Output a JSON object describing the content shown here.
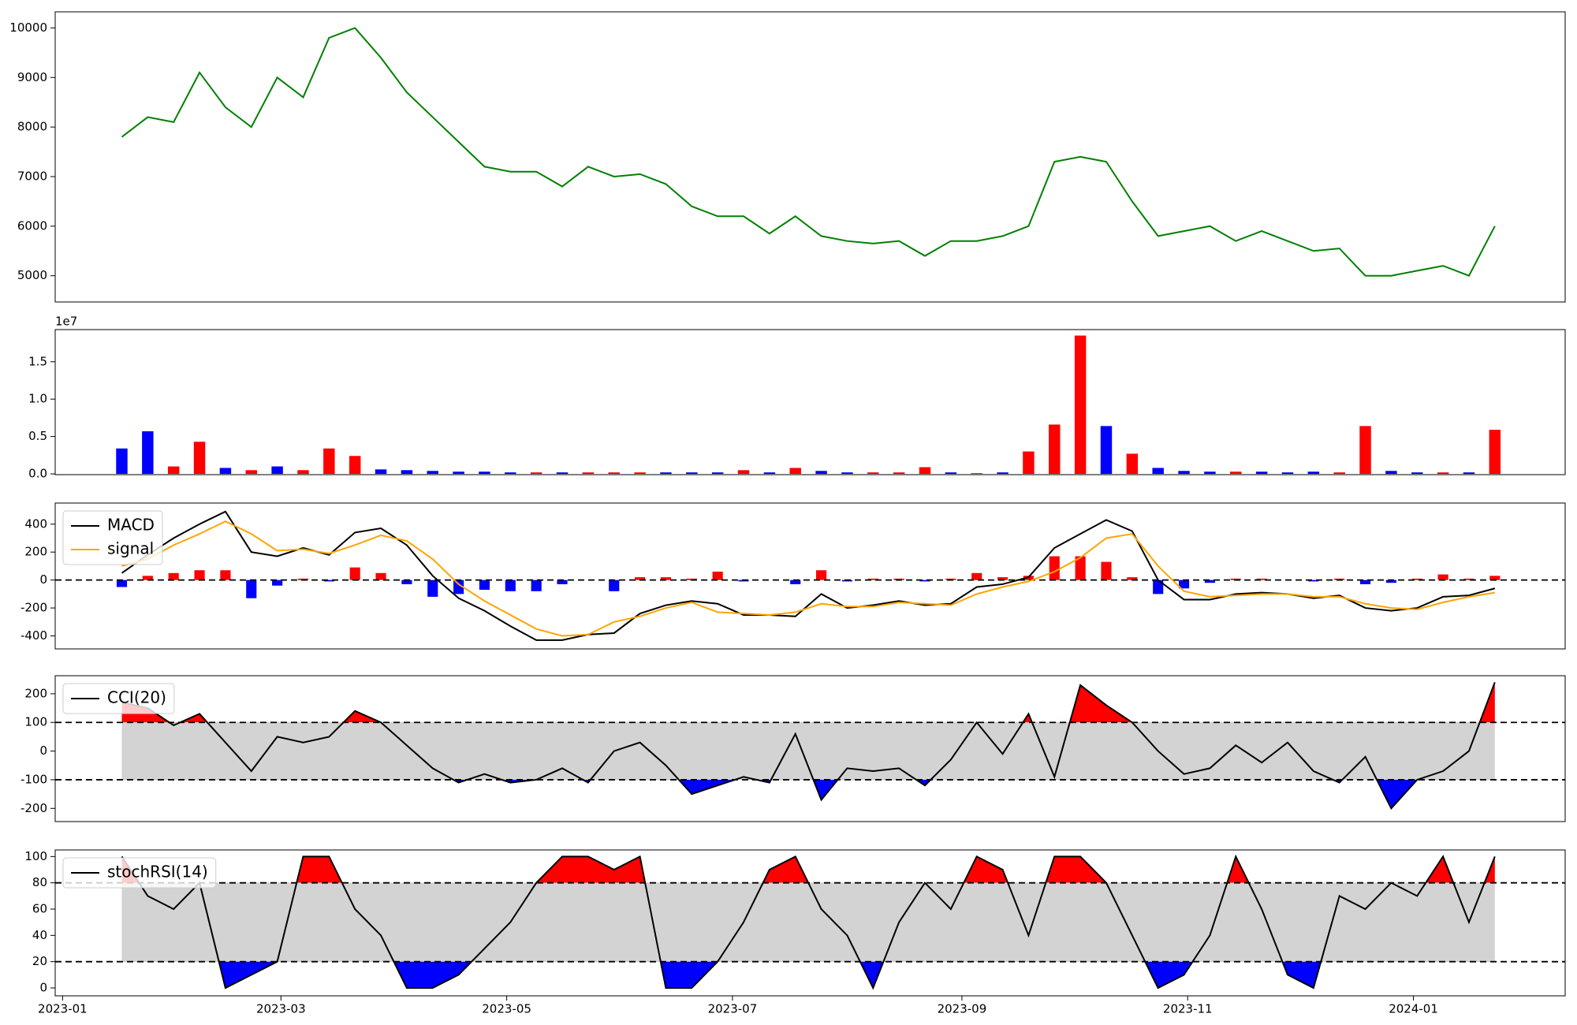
{
  "chart_data": {
    "type": "indicator-panels",
    "x": [
      "2023-01-17",
      "2023-01-24",
      "2023-01-31",
      "2023-02-07",
      "2023-02-14",
      "2023-02-21",
      "2023-02-28",
      "2023-03-07",
      "2023-03-14",
      "2023-03-21",
      "2023-03-28",
      "2023-04-04",
      "2023-04-11",
      "2023-04-18",
      "2023-04-25",
      "2023-05-02",
      "2023-05-09",
      "2023-05-16",
      "2023-05-23",
      "2023-05-30",
      "2023-06-06",
      "2023-06-13",
      "2023-06-20",
      "2023-06-27",
      "2023-07-04",
      "2023-07-11",
      "2023-07-18",
      "2023-07-25",
      "2023-08-01",
      "2023-08-08",
      "2023-08-15",
      "2023-08-22",
      "2023-08-29",
      "2023-09-05",
      "2023-09-12",
      "2023-09-19",
      "2023-09-26",
      "2023-10-03",
      "2023-10-10",
      "2023-10-17",
      "2023-10-24",
      "2023-10-31",
      "2023-11-07",
      "2023-11-14",
      "2023-11-21",
      "2023-11-28",
      "2023-12-05",
      "2023-12-12",
      "2023-12-19",
      "2023-12-26",
      "2024-01-02",
      "2024-01-09",
      "2024-01-16",
      "2024-01-23"
    ],
    "xlim": [
      "2022-12-30",
      "2024-02-11"
    ],
    "xticks": [
      {
        "value": "2023-01-01",
        "label": "2023-01"
      },
      {
        "value": "2023-03-01",
        "label": "2023-03"
      },
      {
        "value": "2023-05-01",
        "label": "2023-05"
      },
      {
        "value": "2023-07-01",
        "label": "2023-07"
      },
      {
        "value": "2023-09-01",
        "label": "2023-09"
      },
      {
        "value": "2023-11-01",
        "label": "2023-11"
      },
      {
        "value": "2024-01-01",
        "label": "2024-01"
      }
    ],
    "panels": [
      {
        "type": "line",
        "color": "green",
        "values": [
          7800,
          8200,
          8100,
          9100,
          8400,
          8000,
          9000,
          8600,
          9800,
          10000,
          9400,
          8700,
          8200,
          7700,
          7200,
          7100,
          7100,
          6800,
          7200,
          7000,
          7050,
          6850,
          6400,
          6200,
          6200,
          5850,
          6200,
          5800,
          5700,
          5650,
          5700,
          5400,
          5700,
          5700,
          5800,
          6000,
          7300,
          7400,
          7300,
          6500,
          5800,
          5900,
          6000,
          5700,
          5900,
          5700,
          5500,
          5550,
          5000,
          5000,
          5100,
          5200,
          5000,
          6000
        ],
        "ylim": [
          4470,
          10325
        ],
        "yticks": [
          5000,
          6000,
          7000,
          8000,
          9000,
          10000
        ]
      },
      {
        "type": "bar",
        "offset_label": "1e7",
        "values": [
          0.34,
          0.57,
          0.1,
          0.43,
          0.08,
          0.05,
          0.1,
          0.05,
          0.34,
          0.24,
          0.06,
          0.05,
          0.04,
          0.03,
          0.03,
          0.02,
          0.02,
          0.02,
          0.02,
          0.02,
          0.02,
          0.02,
          0.02,
          0.02,
          0.05,
          0.02,
          0.08,
          0.04,
          0.02,
          0.02,
          0.02,
          0.09,
          0.02,
          0.01,
          0.02,
          0.3,
          0.66,
          1.85,
          0.64,
          0.27,
          0.08,
          0.04,
          0.03,
          0.03,
          0.03,
          0.02,
          0.03,
          0.02,
          0.64,
          0.04,
          0.02,
          0.02,
          0.02,
          0.59
        ],
        "colors": [
          "blue",
          "blue",
          "red",
          "red",
          "blue",
          "red",
          "blue",
          "red",
          "red",
          "red",
          "blue",
          "blue",
          "blue",
          "blue",
          "blue",
          "blue",
          "red",
          "blue",
          "red",
          "red",
          "red",
          "blue",
          "blue",
          "blue",
          "red",
          "blue",
          "red",
          "blue",
          "blue",
          "red",
          "red",
          "red",
          "blue",
          "red",
          "blue",
          "red",
          "red",
          "red",
          "blue",
          "red",
          "blue",
          "blue",
          "blue",
          "red",
          "blue",
          "blue",
          "blue",
          "red",
          "red",
          "blue",
          "blue",
          "red",
          "blue",
          "red"
        ],
        "ylim": [
          -0.01,
          1.93
        ],
        "yticks": [
          {
            "value": 0,
            "label": "0.0"
          },
          {
            "value": 0.5,
            "label": "0.5"
          },
          {
            "value": 1,
            "label": "1.0"
          },
          {
            "value": 1.5,
            "label": "1.5"
          }
        ]
      },
      {
        "type": "macd",
        "series": [
          {
            "name": "MACD",
            "color": "black",
            "values": [
              50,
              180,
              300,
              400,
              490,
              200,
              170,
              230,
              180,
              340,
              370,
              250,
              30,
              -130,
              -220,
              -330,
              -430,
              -430,
              -390,
              -380,
              -240,
              -180,
              -150,
              -170,
              -250,
              -250,
              -260,
              -100,
              -200,
              -180,
              -150,
              -180,
              -170,
              -50,
              -30,
              20,
              230,
              330,
              430,
              350,
              0,
              -140,
              -140,
              -100,
              -90,
              -100,
              -130,
              -110,
              -200,
              -220,
              -200,
              -120,
              -110,
              -60
            ]
          },
          {
            "name": "signal",
            "color": "orange",
            "values": [
              100,
              150,
              250,
              330,
              420,
              330,
              210,
              220,
              190,
              250,
              320,
              280,
              150,
              -30,
              -150,
              -250,
              -350,
              -400,
              -390,
              -300,
              -260,
              -200,
              -160,
              -230,
              -240,
              -250,
              -230,
              -170,
              -190,
              -190,
              -160,
              -170,
              -180,
              -100,
              -50,
              -10,
              60,
              160,
              300,
              330,
              100,
              -80,
              -120,
              -110,
              -100,
              -100,
              -120,
              -120,
              -170,
              -200,
              -210,
              -160,
              -120,
              -90
            ]
          }
        ],
        "histogram": {
          "up_color": "red",
          "down_color": "blue",
          "values": [
            -50,
            30,
            50,
            70,
            70,
            -130,
            -40,
            10,
            -10,
            90,
            50,
            -30,
            -120,
            -100,
            -70,
            -80,
            -80,
            -30,
            0,
            -80,
            20,
            20,
            10,
            60,
            -10,
            0,
            -30,
            70,
            -10,
            10,
            10,
            -10,
            10,
            50,
            20,
            30,
            170,
            170,
            130,
            20,
            -100,
            -60,
            -20,
            10,
            10,
            0,
            -10,
            10,
            -30,
            -20,
            10,
            40,
            10,
            30
          ]
        },
        "hlines": [
          0
        ],
        "ylim": [
          -493,
          551
        ],
        "yticks": [
          -400,
          -200,
          0,
          200,
          400
        ]
      },
      {
        "type": "oscillator",
        "series": [
          {
            "name": "CCI(20)",
            "color": "black",
            "values": [
              170,
              150,
              90,
              130,
              30,
              -70,
              50,
              30,
              50,
              140,
              100,
              20,
              -60,
              -110,
              -80,
              -110,
              -100,
              -60,
              -110,
              0,
              30,
              -50,
              -150,
              -120,
              -90,
              -110,
              60,
              -170,
              -60,
              -70,
              -60,
              -120,
              -30,
              100,
              -10,
              130,
              -90,
              230,
              160,
              100,
              0,
              -80,
              -60,
              20,
              -40,
              30,
              -70,
              -110,
              -20,
              -200,
              -100,
              -70,
              0,
              240
            ]
          }
        ],
        "thresholds": [
          -100,
          100
        ],
        "band_color": "lightgray",
        "upper_color": "red",
        "lower_color": "blue",
        "ylim": [
          -246,
          263
        ],
        "yticks": [
          -200,
          -100,
          0,
          100,
          200
        ]
      },
      {
        "type": "oscillator",
        "series": [
          {
            "name": "stochRSI(14)",
            "color": "black",
            "values": [
              100,
              70,
              60,
              80,
              0,
              10,
              20,
              100,
              100,
              60,
              40,
              0,
              0,
              10,
              30,
              50,
              80,
              100,
              100,
              90,
              100,
              0,
              0,
              20,
              50,
              90,
              100,
              60,
              40,
              0,
              50,
              80,
              60,
              100,
              90,
              40,
              100,
              100,
              80,
              40,
              0,
              10,
              40,
              100,
              60,
              10,
              0,
              70,
              60,
              80,
              70,
              100,
              50,
              100
            ]
          }
        ],
        "thresholds": [
          20,
          80
        ],
        "band_color": "lightgray",
        "upper_color": "red",
        "lower_color": "blue",
        "ylim": [
          -6,
          105
        ],
        "yticks": [
          0,
          20,
          40,
          60,
          80,
          100
        ]
      }
    ]
  }
}
